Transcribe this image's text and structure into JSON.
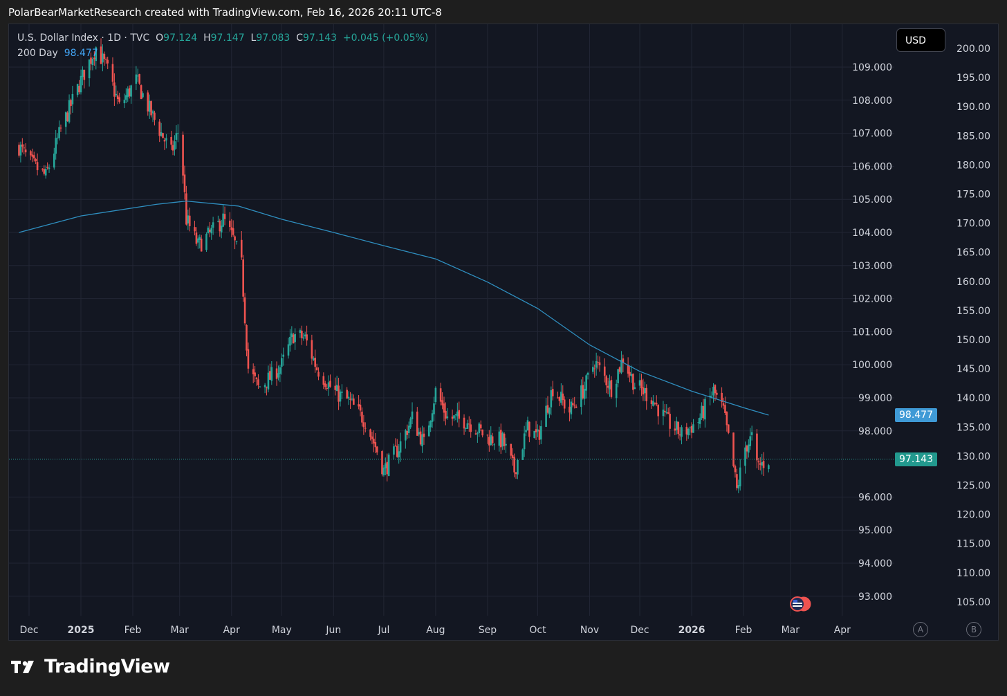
{
  "header": {
    "caption": "PolarBearMarketResearch created with TradingView.com, Feb 16, 2026 20:11 UTC-8"
  },
  "legend": {
    "symbol": "U.S. Dollar Index · 1D · TVC",
    "o_label": "O",
    "o_value": "97.124",
    "h_label": "H",
    "h_value": "97.147",
    "l_label": "L",
    "l_value": "97.083",
    "c_label": "C",
    "c_value": "97.143",
    "change": "+0.045 (+0.05%)",
    "ma_label": "200 Day",
    "ma_value": "98.477"
  },
  "currency_button": "USD",
  "price_tags": {
    "ma": "98.477",
    "last": "97.143"
  },
  "scale_buttons": {
    "a": "A",
    "b": "B"
  },
  "brand": {
    "name": "TradingView"
  },
  "colors": {
    "up": "#26a69a",
    "down": "#ef5350",
    "ma": "#2f8fc0",
    "bg": "#131722",
    "grid": "#222634",
    "ma_tag": "#3f9ad6",
    "last_tag": "#22998e"
  },
  "chart_data": {
    "type": "candlestick",
    "title": "U.S. Dollar Index",
    "x_axis": {
      "labels": [
        "Dec",
        "2025",
        "Feb",
        "Mar",
        "Apr",
        "May",
        "Jun",
        "Jul",
        "Aug",
        "Sep",
        "Oct",
        "Nov",
        "Dec",
        "2026",
        "Feb",
        "Mar",
        "Apr"
      ]
    },
    "left_axis": {
      "ticks": [
        "109.000",
        "108.000",
        "107.000",
        "106.000",
        "105.000",
        "104.000",
        "103.000",
        "102.000",
        "101.000",
        "100.000",
        "99.000",
        "98.000",
        "96.000",
        "95.000",
        "94.000",
        "93.000"
      ],
      "range": [
        92.6,
        110.5
      ]
    },
    "right_axis": {
      "ticks": [
        "200.00",
        "195.00",
        "190.00",
        "185.00",
        "180.00",
        "175.00",
        "170.00",
        "165.00",
        "160.00",
        "155.00",
        "150.00",
        "145.00",
        "140.00",
        "135.00",
        "130.00",
        "125.00",
        "120.00",
        "115.00",
        "110.00",
        "105.00"
      ]
    },
    "close_path": [
      [
        "2024-11-25",
        106.6
      ],
      [
        "2024-12-02",
        106.1
      ],
      [
        "2024-12-11",
        105.7
      ],
      [
        "2024-12-20",
        107.1
      ],
      [
        "2025-01-01",
        108.6
      ],
      [
        "2025-01-10",
        109.6
      ],
      [
        "2025-01-17",
        108.9
      ],
      [
        "2025-01-24",
        107.8
      ],
      [
        "2025-02-03",
        108.6
      ],
      [
        "2025-02-12",
        107.6
      ],
      [
        "2025-02-24",
        106.4
      ],
      [
        "2025-03-01",
        107.2
      ],
      [
        "2025-03-05",
        104.4
      ],
      [
        "2025-03-12",
        103.6
      ],
      [
        "2025-03-20",
        104.0
      ],
      [
        "2025-03-27",
        104.4
      ],
      [
        "2025-04-02",
        103.8
      ],
      [
        "2025-04-07",
        103.0
      ],
      [
        "2025-04-11",
        99.9
      ],
      [
        "2025-04-17",
        99.3
      ],
      [
        "2025-04-24",
        99.6
      ],
      [
        "2025-05-01",
        100.0
      ],
      [
        "2025-05-08",
        100.9
      ],
      [
        "2025-05-15",
        100.8
      ],
      [
        "2025-05-22",
        99.9
      ],
      [
        "2025-06-01",
        99.2
      ],
      [
        "2025-06-10",
        98.9
      ],
      [
        "2025-06-20",
        98.3
      ],
      [
        "2025-06-27",
        97.4
      ],
      [
        "2025-07-01",
        96.8
      ],
      [
        "2025-07-10",
        97.5
      ],
      [
        "2025-07-18",
        98.4
      ],
      [
        "2025-07-25",
        97.6
      ],
      [
        "2025-08-01",
        99.2
      ],
      [
        "2025-08-08",
        98.4
      ],
      [
        "2025-08-20",
        98.3
      ],
      [
        "2025-09-01",
        97.8
      ],
      [
        "2025-09-10",
        97.7
      ],
      [
        "2025-09-17",
        96.8
      ],
      [
        "2025-09-25",
        98.1
      ],
      [
        "2025-10-01",
        97.8
      ],
      [
        "2025-10-10",
        99.3
      ],
      [
        "2025-10-20",
        98.6
      ],
      [
        "2025-10-29",
        99.3
      ],
      [
        "2025-11-04",
        100.1
      ],
      [
        "2025-11-14",
        99.3
      ],
      [
        "2025-11-21",
        100.2
      ],
      [
        "2025-11-28",
        99.4
      ],
      [
        "2025-12-08",
        99.0
      ],
      [
        "2025-12-17",
        98.3
      ],
      [
        "2025-12-26",
        97.9
      ],
      [
        "2026-01-05",
        98.3
      ],
      [
        "2026-01-14",
        99.2
      ],
      [
        "2026-01-20",
        98.6
      ],
      [
        "2026-01-26",
        96.9
      ],
      [
        "2026-01-28",
        96.2
      ],
      [
        "2026-02-02",
        97.5
      ],
      [
        "2026-02-06",
        97.8
      ],
      [
        "2026-02-09",
        96.9
      ],
      [
        "2026-02-16",
        97.14
      ]
    ],
    "ma_200_path": [
      [
        "2024-11-25",
        104.0
      ],
      [
        "2025-01-01",
        104.5
      ],
      [
        "2025-02-15",
        104.85
      ],
      [
        "2025-03-05",
        104.95
      ],
      [
        "2025-04-05",
        104.8
      ],
      [
        "2025-05-01",
        104.4
      ],
      [
        "2025-06-01",
        104.0
      ],
      [
        "2025-07-01",
        103.6
      ],
      [
        "2025-08-01",
        103.2
      ],
      [
        "2025-09-01",
        102.5
      ],
      [
        "2025-10-01",
        101.7
      ],
      [
        "2025-11-01",
        100.6
      ],
      [
        "2025-12-01",
        99.8
      ],
      [
        "2026-01-01",
        99.2
      ],
      [
        "2026-02-01",
        98.7
      ],
      [
        "2026-02-16",
        98.477
      ]
    ],
    "last_close": 97.143,
    "ma_last": 98.477
  }
}
